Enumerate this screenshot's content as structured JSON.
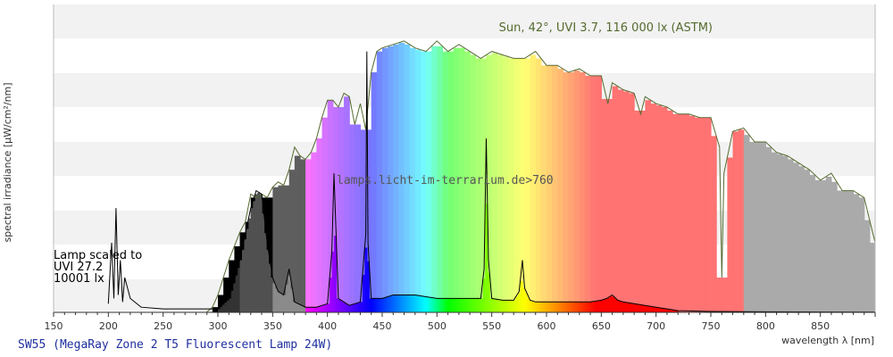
{
  "chart_data": {
    "type": "area",
    "title": "",
    "xlabel": "wavelength λ [nm]",
    "ylabel": "spectral irradiance [µW/cm²/nm]",
    "xlim": [
      150,
      900
    ],
    "x_ticks": [
      150,
      200,
      250,
      300,
      350,
      400,
      450,
      500,
      550,
      600,
      650,
      700,
      750,
      800,
      850
    ],
    "grid": "horizontal bands",
    "caption": "SW55 (MegaRay Zone 2 T5 Fluorescent Lamp 24W)",
    "watermark": "lamps.licht-im-terrarium.de>760",
    "series": [
      {
        "name": "Sun, 42°, UVI 3.7, 116 000 lx (ASTM)",
        "x": [
          290,
          295,
          300,
          305,
          310,
          315,
          320,
          325,
          330,
          335,
          340,
          345,
          350,
          355,
          360,
          365,
          370,
          375,
          380,
          385,
          390,
          395,
          400,
          405,
          410,
          415,
          420,
          425,
          430,
          435,
          440,
          445,
          450,
          460,
          470,
          480,
          490,
          500,
          510,
          520,
          530,
          540,
          550,
          560,
          570,
          580,
          590,
          600,
          610,
          620,
          630,
          640,
          650,
          656,
          660,
          670,
          680,
          686,
          690,
          700,
          710,
          720,
          730,
          740,
          750,
          758,
          760,
          762,
          770,
          780,
          790,
          800,
          810,
          820,
          830,
          840,
          850,
          860,
          870,
          880,
          890,
          900
        ],
        "y": [
          0.2,
          3,
          10,
          20,
          30,
          38,
          46,
          52,
          68,
          66,
          68,
          66,
          72,
          75,
          73,
          82,
          95,
          90,
          88,
          92,
          100,
          112,
          122,
          122,
          118,
          126,
          124,
          108,
          120,
          105,
          138,
          150,
          152,
          154,
          156,
          152,
          150,
          156,
          150,
          154,
          150,
          146,
          150,
          148,
          146,
          146,
          150,
          142,
          142,
          138,
          140,
          136,
          136,
          120,
          132,
          128,
          126,
          114,
          124,
          120,
          118,
          114,
          114,
          112,
          112,
          95,
          20,
          80,
          104,
          106,
          98,
          98,
          92,
          90,
          86,
          82,
          76,
          80,
          70,
          70,
          66,
          40
        ]
      },
      {
        "name": "SW55 (MegaRay Zone 2 T5 Fluorescent Lamp 24W)",
        "scaled_note": "Lamp scaled to UVI 27.2 10001 lx",
        "x": [
          200,
          203,
          205,
          207,
          209,
          211,
          213,
          215,
          220,
          230,
          250,
          280,
          300,
          310,
          320,
          330,
          335,
          340,
          345,
          350,
          355,
          360,
          365,
          370,
          380,
          390,
          400,
          404,
          406,
          410,
          420,
          430,
          435,
          436,
          437,
          440,
          450,
          460,
          470,
          480,
          490,
          500,
          510,
          520,
          530,
          540,
          543,
          545,
          547,
          550,
          560,
          570,
          575,
          578,
          580,
          585,
          590,
          600,
          610,
          620,
          630,
          640,
          650,
          655,
          660,
          665,
          670,
          680,
          690,
          700,
          710,
          720,
          750,
          800,
          850,
          900
        ],
        "y": [
          5,
          40,
          8,
          60,
          10,
          30,
          6,
          20,
          8,
          3,
          2,
          2,
          2,
          8,
          30,
          60,
          70,
          68,
          40,
          20,
          12,
          10,
          25,
          6,
          3,
          3,
          5,
          35,
          80,
          8,
          4,
          6,
          45,
          150,
          40,
          8,
          8,
          10,
          10,
          10,
          9,
          8,
          8,
          8,
          8,
          8,
          25,
          100,
          30,
          8,
          7,
          7,
          12,
          30,
          14,
          7,
          6,
          6,
          6,
          6,
          6,
          6,
          7,
          8,
          10,
          7,
          6,
          5,
          4,
          3,
          2,
          1,
          0.5,
          0.3,
          0.2,
          0.1
        ]
      }
    ],
    "legend_labels": {
      "sun": "Sun, 42°, UVI 3.7, 116 000 lx (ASTM)",
      "lamp_line1": "Lamp scaled to",
      "lamp_line2": "UVI 27.2",
      "lamp_line3": "10001 lx"
    },
    "colors": {
      "sun_line": "#556b2f",
      "sun_title": "#556b2f",
      "lamp_line": "#000000",
      "caption": "#1f2f9f",
      "band": "#f2f2f2",
      "axis": "#333333"
    }
  }
}
